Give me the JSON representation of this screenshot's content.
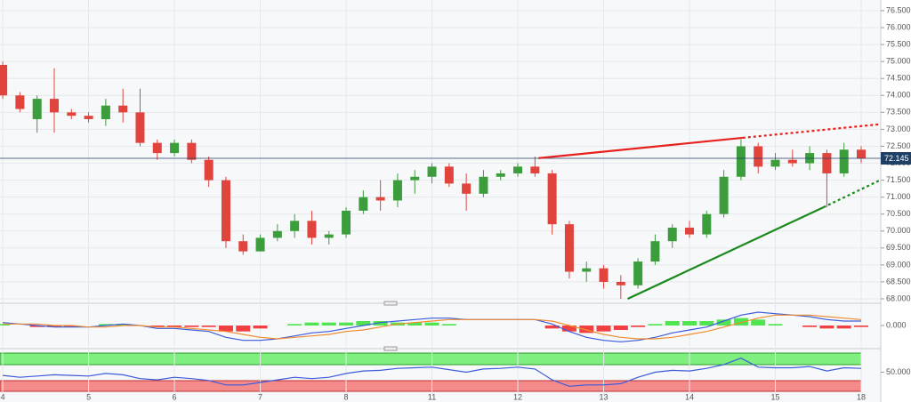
{
  "chart_data": {
    "type": "candlestick",
    "x": [
      0,
      1,
      2,
      3,
      4,
      5,
      6,
      7,
      8,
      9,
      10,
      11,
      12,
      13,
      14,
      15,
      16,
      17,
      18,
      19,
      20,
      21,
      22,
      23,
      24,
      25,
      26,
      27,
      28,
      29,
      30,
      31,
      32,
      33,
      34,
      35,
      36,
      37,
      38,
      39,
      40,
      41,
      42,
      43,
      44,
      45,
      46,
      47,
      48,
      49,
      50
    ],
    "open": [
      74.9,
      74.0,
      73.3,
      73.9,
      73.5,
      73.4,
      73.3,
      73.7,
      73.5,
      72.6,
      72.3,
      72.6,
      72.1,
      71.5,
      69.7,
      69.4,
      69.8,
      70.0,
      70.3,
      69.8,
      69.9,
      70.6,
      71.0,
      70.9,
      71.5,
      71.6,
      71.9,
      71.4,
      71.1,
      71.6,
      71.7,
      71.9,
      71.7,
      70.2,
      68.8,
      68.9,
      68.5,
      68.4,
      69.1,
      69.7,
      70.1,
      69.9,
      70.5,
      71.6,
      72.5,
      71.9,
      72.1,
      72.0,
      72.3,
      71.7,
      72.4
    ],
    "high": [
      75.0,
      74.1,
      74.0,
      74.8,
      73.6,
      73.5,
      73.9,
      74.2,
      74.2,
      72.7,
      72.7,
      72.7,
      72.2,
      71.6,
      69.9,
      69.9,
      70.2,
      70.5,
      70.6,
      70.0,
      70.7,
      71.2,
      71.5,
      71.7,
      71.8,
      72.0,
      72.0,
      71.7,
      71.8,
      71.8,
      72.0,
      72.2,
      71.8,
      70.3,
      69.1,
      69.0,
      68.7,
      69.2,
      69.9,
      70.2,
      70.3,
      70.6,
      71.8,
      72.7,
      72.6,
      72.3,
      72.4,
      72.5,
      72.4,
      72.6,
      72.5
    ],
    "low": [
      73.9,
      73.5,
      72.9,
      72.9,
      73.3,
      73.2,
      73.1,
      73.2,
      72.5,
      72.1,
      72.2,
      72.0,
      71.3,
      69.5,
      69.3,
      69.4,
      69.7,
      69.8,
      69.6,
      69.6,
      69.8,
      70.5,
      70.6,
      70.7,
      71.1,
      71.4,
      71.3,
      70.6,
      71.0,
      71.5,
      71.6,
      71.6,
      69.9,
      68.6,
      68.5,
      68.3,
      68.0,
      68.3,
      69.0,
      69.5,
      69.8,
      69.8,
      70.4,
      71.5,
      71.7,
      71.8,
      71.9,
      71.8,
      70.7,
      71.6,
      72.0
    ],
    "close": [
      74.0,
      73.6,
      73.9,
      73.5,
      73.4,
      73.3,
      73.7,
      73.5,
      72.6,
      72.3,
      72.6,
      72.1,
      71.5,
      69.7,
      69.4,
      69.8,
      70.0,
      70.3,
      69.8,
      69.9,
      70.6,
      71.0,
      70.9,
      71.5,
      71.6,
      71.9,
      71.4,
      71.1,
      71.6,
      71.7,
      71.9,
      71.7,
      70.2,
      68.8,
      68.9,
      68.5,
      68.4,
      69.1,
      69.7,
      70.1,
      69.9,
      70.5,
      71.6,
      72.5,
      71.9,
      72.1,
      72.0,
      72.3,
      71.7,
      72.4,
      72.145
    ],
    "up_color": "#3c9d3c",
    "down_color": "#e0443c",
    "xlim": [
      -0.16,
      51.14
    ],
    "xticks": [
      {
        "value": 0,
        "label": "4"
      },
      {
        "value": 5,
        "label": "5"
      },
      {
        "value": 10,
        "label": "6"
      },
      {
        "value": 15,
        "label": "7"
      },
      {
        "value": 20,
        "label": "8"
      },
      {
        "value": 25,
        "label": "11"
      },
      {
        "value": 30,
        "label": "12"
      },
      {
        "value": 35,
        "label": "13"
      },
      {
        "value": 40,
        "label": "14"
      },
      {
        "value": 45,
        "label": "15"
      },
      {
        "value": 50,
        "label": "18"
      }
    ],
    "ylim": [
      68,
      76.5
    ],
    "yticks": [
      {
        "value": 68,
        "label": "68.000"
      },
      {
        "value": 68.5,
        "label": "68.500"
      },
      {
        "value": 69,
        "label": "69.000"
      },
      {
        "value": 69.5,
        "label": "69.500"
      },
      {
        "value": 70,
        "label": "70.000"
      },
      {
        "value": 70.5,
        "label": "70.500"
      },
      {
        "value": 71,
        "label": "71.000"
      },
      {
        "value": 71.5,
        "label": "71.500"
      },
      {
        "value": 72,
        "label": "72.000"
      },
      {
        "value": 72.5,
        "label": "72.500"
      },
      {
        "value": 73,
        "label": "73.000"
      },
      {
        "value": 73.5,
        "label": "73.500"
      },
      {
        "value": 74,
        "label": "74.000"
      },
      {
        "value": 74.5,
        "label": "74.500"
      },
      {
        "value": 75,
        "label": "75.000"
      },
      {
        "value": 75.5,
        "label": "75.500"
      },
      {
        "value": 76,
        "label": "76.000"
      },
      {
        "value": 76.5,
        "label": "76.500"
      }
    ],
    "grid": true,
    "last_price": {
      "value": 72.145,
      "label": "72.145",
      "color": "#1e3f66"
    },
    "trendlines": [
      {
        "color": "#e8201c",
        "x": [
          31.2,
          43.1
        ],
        "y": [
          72.15,
          72.75
        ],
        "ext_x": [
          43.1,
          51.1
        ],
        "ext_y": [
          72.75,
          73.15
        ]
      },
      {
        "color": "#1a8a1a",
        "x": [
          36.4,
          47.8
        ],
        "y": [
          68.0,
          70.7
        ],
        "ext_x": [
          47.8,
          51.1
        ],
        "ext_y": [
          70.7,
          71.5
        ]
      }
    ],
    "macd": {
      "ylim": [
        -1.2,
        1.2
      ],
      "yticks": [
        {
          "value": 0,
          "label": "0.000"
        }
      ],
      "macd_color": "#3b5bdb",
      "signal_color": "#f08c30",
      "pos_color": "#33e033",
      "neg_color": "#f02020",
      "macd": [
        0.2,
        0.1,
        0,
        -0.1,
        -0.1,
        -0.1,
        0,
        0.1,
        0,
        -0.2,
        -0.2,
        -0.3,
        -0.4,
        -0.8,
        -1.0,
        -1.0,
        -0.9,
        -0.7,
        -0.5,
        -0.4,
        -0.2,
        0,
        0.2,
        0.3,
        0.4,
        0.5,
        0.5,
        0.4,
        0.4,
        0.4,
        0.4,
        0.4,
        0.1,
        -0.4,
        -0.8,
        -1.0,
        -1.1,
        -1.0,
        -0.8,
        -0.5,
        -0.3,
        -0.1,
        0.3,
        0.7,
        0.9,
        0.8,
        0.7,
        0.6,
        0.4,
        0.3,
        0.3
      ],
      "signal": [
        0.1,
        0.1,
        0.1,
        0,
        0,
        -0.1,
        -0.1,
        0,
        0,
        -0.1,
        -0.1,
        -0.2,
        -0.3,
        -0.4,
        -0.6,
        -0.8,
        -0.9,
        -0.8,
        -0.7,
        -0.6,
        -0.4,
        -0.3,
        -0.1,
        0.1,
        0.2,
        0.3,
        0.4,
        0.4,
        0.4,
        0.4,
        0.4,
        0.4,
        0.3,
        0,
        -0.3,
        -0.6,
        -0.8,
        -0.9,
        -0.9,
        -0.8,
        -0.6,
        -0.4,
        -0.1,
        0.2,
        0.5,
        0.7,
        0.7,
        0.7,
        0.6,
        0.5,
        0.4
      ],
      "histogram": [
        0.1,
        0,
        -0.1,
        -0.1,
        -0.1,
        0,
        0.1,
        0.1,
        0,
        -0.1,
        -0.1,
        -0.1,
        -0.1,
        -0.4,
        -0.4,
        -0.2,
        0,
        0.1,
        0.2,
        0.2,
        0.2,
        0.3,
        0.3,
        0.2,
        0.2,
        0.2,
        0.1,
        0,
        0,
        0,
        0,
        0,
        -0.2,
        -0.4,
        -0.5,
        -0.4,
        -0.3,
        -0.1,
        0.1,
        0.3,
        0.3,
        0.3,
        0.4,
        0.5,
        0.4,
        0.1,
        0,
        -0.1,
        -0.2,
        -0.2,
        -0.1
      ]
    },
    "rsi": {
      "ylim": [
        20,
        80
      ],
      "yticks": [
        {
          "value": 50,
          "label": "50.000"
        }
      ],
      "color": "#3b5bdb",
      "values": [
        45,
        42,
        44,
        46,
        45,
        44,
        48,
        46,
        40,
        38,
        42,
        40,
        37,
        30,
        30,
        34,
        38,
        42,
        40,
        42,
        48,
        52,
        53,
        56,
        57,
        58,
        54,
        50,
        55,
        56,
        58,
        55,
        38,
        28,
        30,
        30,
        32,
        42,
        50,
        53,
        52,
        56,
        62,
        72,
        58,
        57,
        57,
        59,
        52,
        57,
        56
      ]
    }
  }
}
